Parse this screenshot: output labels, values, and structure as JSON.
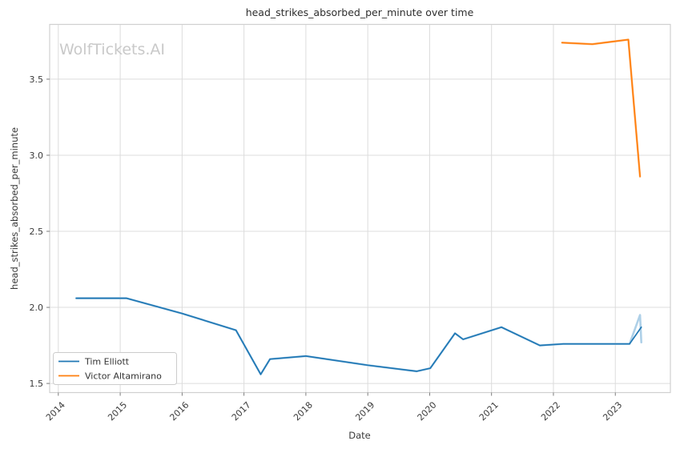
{
  "chart_data": {
    "type": "line",
    "title": "head_strikes_absorbed_per_minute over time",
    "xlabel": "Date",
    "ylabel": "head_strikes_absorbed_per_minute",
    "watermark": "WolfTickets.AI",
    "grid": true,
    "legend_position": "lower left",
    "xlim": [
      2013.86,
      2023.89
    ],
    "ylim": [
      1.44,
      3.86
    ],
    "xticks": [
      {
        "value": 2014,
        "label": "2014"
      },
      {
        "value": 2015,
        "label": "2015"
      },
      {
        "value": 2016,
        "label": "2016"
      },
      {
        "value": 2017,
        "label": "2017"
      },
      {
        "value": 2018,
        "label": "2018"
      },
      {
        "value": 2019,
        "label": "2019"
      },
      {
        "value": 2020,
        "label": "2020"
      },
      {
        "value": 2021,
        "label": "2021"
      },
      {
        "value": 2022,
        "label": "2022"
      },
      {
        "value": 2023,
        "label": "2023"
      }
    ],
    "yticks": [
      {
        "value": 1.5,
        "label": "1.5"
      },
      {
        "value": 2.0,
        "label": "2.0"
      },
      {
        "value": 2.5,
        "label": "2.5"
      },
      {
        "value": 3.0,
        "label": "3.0"
      },
      {
        "value": 3.5,
        "label": "3.5"
      }
    ],
    "series": [
      {
        "name": "Tim Elliott",
        "color": "#1f77b4",
        "light_color": "#aed0e8",
        "points": [
          [
            2014.29,
            2.06
          ],
          [
            2015.1,
            2.06
          ],
          [
            2016.0,
            1.96
          ],
          [
            2016.87,
            1.85
          ],
          [
            2017.27,
            1.56
          ],
          [
            2017.42,
            1.66
          ],
          [
            2018.0,
            1.68
          ],
          [
            2019.0,
            1.62
          ],
          [
            2019.79,
            1.58
          ],
          [
            2020.01,
            1.6
          ],
          [
            2020.41,
            1.83
          ],
          [
            2020.54,
            1.79
          ],
          [
            2021.16,
            1.87
          ],
          [
            2021.78,
            1.75
          ],
          [
            2022.16,
            1.76
          ],
          [
            2023.23,
            1.76
          ],
          [
            2023.42,
            1.87
          ]
        ],
        "light_points": [
          [
            2014.29,
            2.06
          ],
          [
            2015.1,
            2.06
          ],
          [
            2016.0,
            1.96
          ],
          [
            2016.87,
            1.85
          ],
          [
            2017.27,
            1.56
          ],
          [
            2017.42,
            1.66
          ],
          [
            2018.0,
            1.68
          ],
          [
            2019.0,
            1.62
          ],
          [
            2019.79,
            1.58
          ],
          [
            2020.01,
            1.6
          ],
          [
            2020.41,
            1.83
          ],
          [
            2020.54,
            1.79
          ],
          [
            2021.16,
            1.87
          ],
          [
            2021.78,
            1.75
          ],
          [
            2022.16,
            1.76
          ],
          [
            2023.23,
            1.76
          ],
          [
            2023.4,
            1.95
          ],
          [
            2023.42,
            1.77
          ]
        ]
      },
      {
        "name": "Victor Altamirano",
        "color": "#ff7f0e",
        "light_color": "#ffc08a",
        "points": [
          [
            2022.14,
            3.74
          ],
          [
            2022.63,
            3.73
          ],
          [
            2023.21,
            3.76
          ],
          [
            2023.4,
            2.86
          ]
        ]
      }
    ]
  }
}
